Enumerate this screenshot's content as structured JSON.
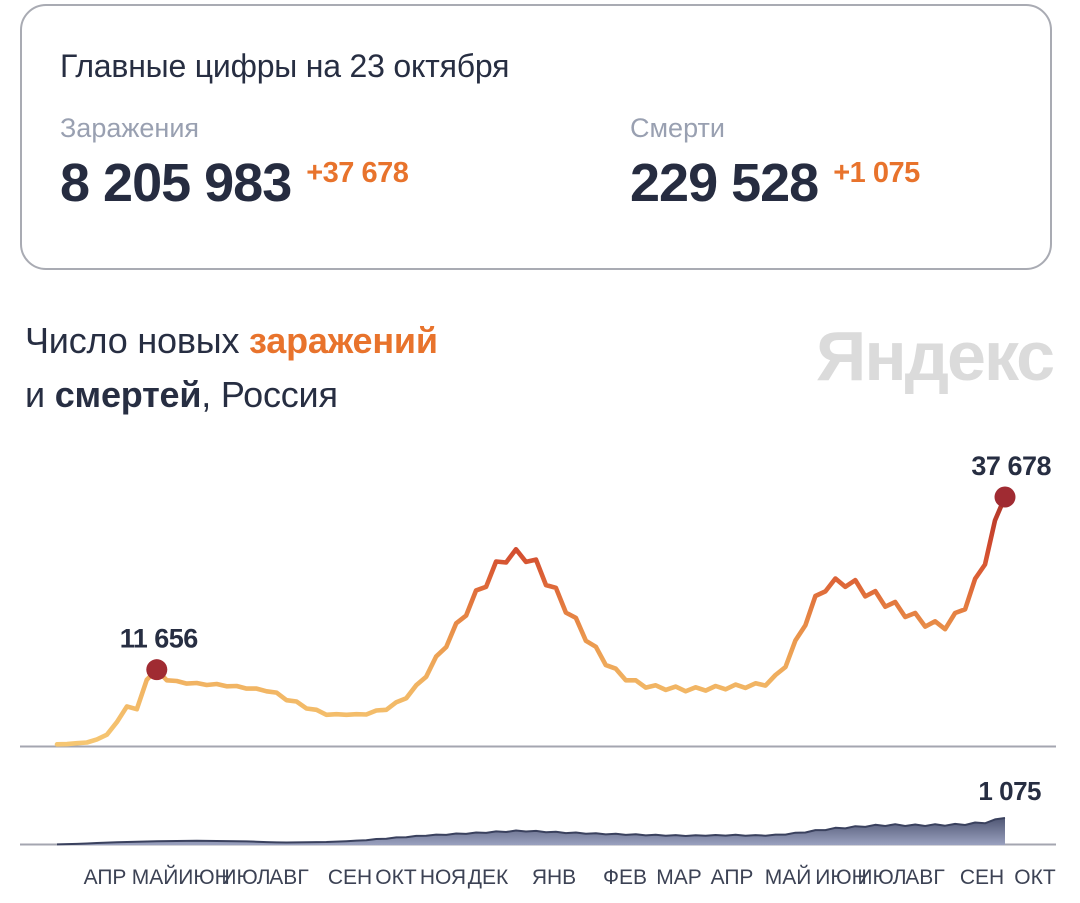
{
  "card": {
    "title": "Главные цифры на 23 октября",
    "stats": [
      {
        "label": "Заражения",
        "value": "8 205 983",
        "delta": "+37 678"
      },
      {
        "label": "Смерти",
        "value": "229 528",
        "delta": "+1 075"
      }
    ]
  },
  "section_title": {
    "line1_prefix": "Число новых ",
    "line1_highlight": "заражений",
    "line2_prefix": "и ",
    "line2_highlight": "смертей",
    "line2_suffix": ", Россия"
  },
  "watermark": "Яндекс",
  "colors": {
    "text_dark": "#272e42",
    "text_gray": "#99a0b1",
    "accent_orange": "#e8732c",
    "marker_red": "#a02b32",
    "card_border": "#a9abb3",
    "baseline_gray": "#a4a6b0",
    "watermark_gray": "#dbdbdb",
    "deaths_dark": "#3a415e",
    "deaths_light": "#9aa1bf"
  },
  "chart_data": {
    "type": "line",
    "title": "Число новых заражений и смертей, Россия",
    "grid": false,
    "x_axis": {
      "months": [
        "АПР",
        "МАЙ",
        "ИЮН",
        "ИЮЛ",
        "АВГ",
        "СЕН",
        "ОКТ",
        "НОЯ",
        "ДЕК",
        "ЯНВ",
        "ФЕВ",
        "МАР",
        "АПР",
        "МАЙ",
        "ИЮН",
        "ИЮЛ",
        "АВГ",
        "СЕН",
        "ОКТ"
      ],
      "centers": [
        105,
        155,
        204,
        246,
        289,
        350,
        396,
        443,
        488,
        554,
        625,
        679,
        732,
        788,
        841,
        882,
        925,
        982,
        1035
      ]
    },
    "infections": {
      "name": "заражения",
      "type": "line",
      "ylim": [
        0,
        37678
      ],
      "gradient_low_to_high": [
        "#f6c773",
        "#f1b463",
        "#eb9a4f",
        "#e47e41",
        "#dc6136",
        "#d14b2f",
        "#a93429"
      ],
      "marker_color": "#a02b32",
      "values": [
        400,
        430,
        580,
        680,
        1150,
        1850,
        3750,
        6100,
        5700,
        10150,
        11656,
        10050,
        9950,
        9550,
        9650,
        9350,
        9500,
        9150,
        9200,
        8800,
        8800,
        8400,
        8200,
        7050,
        6850,
        5800,
        5600,
        4850,
        4950,
        4850,
        4950,
        4900,
        5500,
        5600,
        6750,
        7350,
        9300,
        10600,
        13650,
        15050,
        18650,
        19800,
        23600,
        24150,
        27950,
        27800,
        29800,
        27900,
        28250,
        24400,
        24000,
        20250,
        19450,
        16000,
        15100,
        12350,
        11800,
        10050,
        10050,
        8950,
        9300,
        8600,
        9100,
        8400,
        9000,
        8500,
        9200,
        8700,
        9400,
        8900,
        9600,
        9250,
        10850,
        12050,
        16050,
        18350,
        22750,
        23450,
        25400,
        24150,
        25150,
        22700,
        23500,
        21150,
        21850,
        19600,
        20200,
        18150,
        18950,
        17750,
        20200,
        20750,
        25350,
        27500,
        34150,
        37678
      ],
      "annotations": [
        {
          "index": 10,
          "value": 11656,
          "label": "11 656"
        },
        {
          "index": 95,
          "value": 37678,
          "label": "37 678"
        }
      ]
    },
    "deaths": {
      "name": "смерти",
      "type": "area",
      "ylim": [
        0,
        1075
      ],
      "fill_top": "#3a415e",
      "fill_bottom": "#9aa1bf",
      "values": [
        25,
        35,
        45,
        60,
        80,
        95,
        110,
        120,
        130,
        140,
        150,
        155,
        160,
        165,
        170,
        165,
        160,
        155,
        150,
        145,
        130,
        115,
        105,
        100,
        105,
        110,
        115,
        120,
        135,
        150,
        177,
        192,
        239,
        250,
        302,
        307,
        364,
        365,
        416,
        403,
        458,
        442,
        499,
        480,
        541,
        518,
        577,
        538,
        562,
        504,
        530,
        475,
        499,
        446,
        468,
        422,
        447,
        403,
        426,
        384,
        406,
        370,
        395,
        360,
        390,
        365,
        400,
        374,
        406,
        370,
        395,
        370,
        416,
        413,
        489,
        499,
        593,
        595,
        686,
        662,
        749,
        720,
        806,
        758,
        827,
        758,
        816,
        758,
        827,
        768,
        842,
        797,
        894,
        864,
        1019,
        1075
      ],
      "annotations": [
        {
          "index": 95,
          "value": 1075,
          "label": "1 075"
        }
      ]
    }
  }
}
